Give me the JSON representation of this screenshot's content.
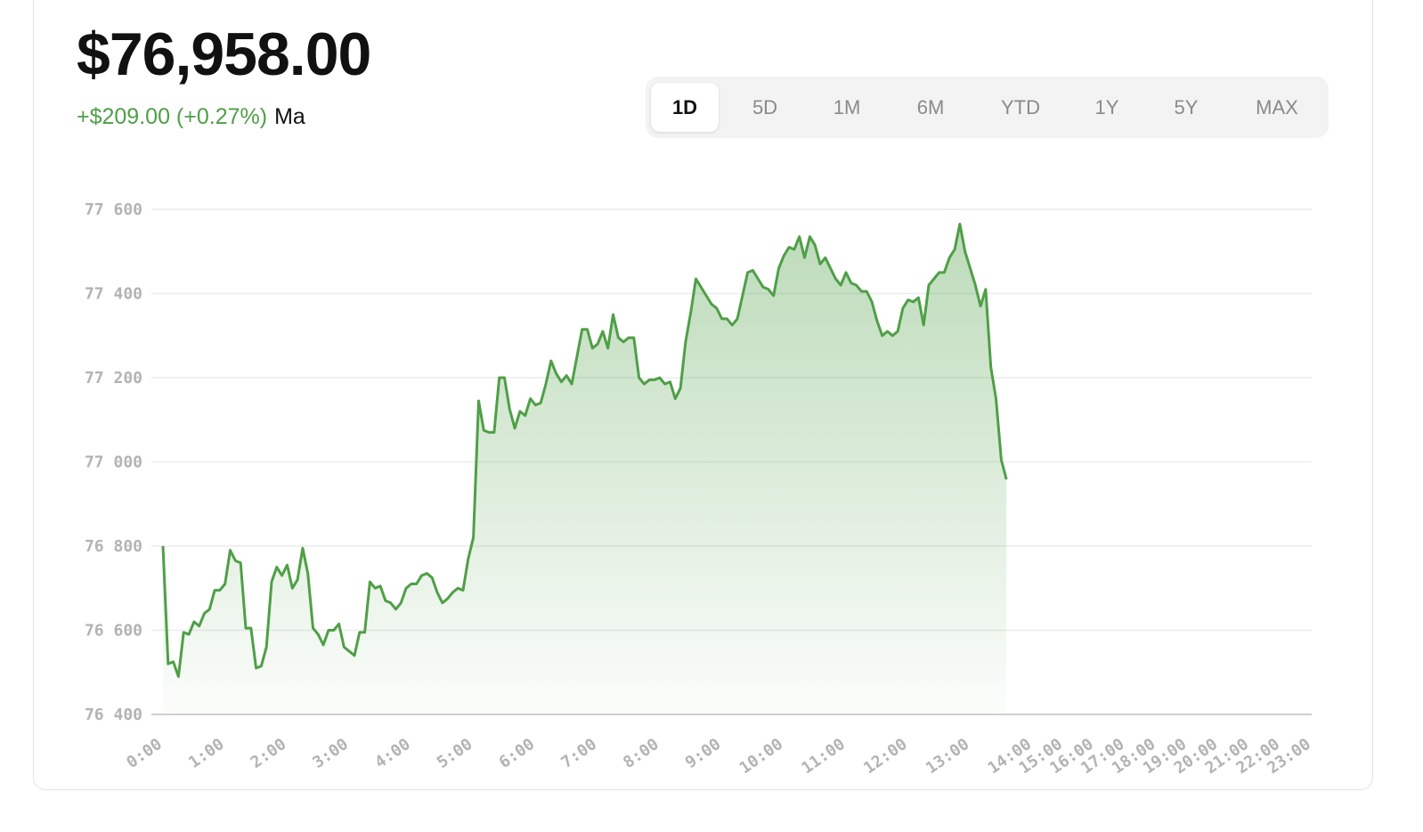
{
  "header": {
    "price": "$76,958.00",
    "change": "+$209.00 (+0.27%)",
    "suffix": "Ma"
  },
  "range_tabs": {
    "items": [
      "1D",
      "5D",
      "1M",
      "6M",
      "YTD",
      "1Y",
      "5Y",
      "MAX"
    ],
    "active": 0
  },
  "chart_data": {
    "type": "line",
    "grid": true,
    "x": [
      0,
      5,
      10,
      15,
      20,
      25,
      30,
      35,
      40,
      45,
      50,
      55,
      60,
      65,
      70,
      75,
      80,
      85,
      90,
      95,
      100,
      105,
      110,
      115,
      120,
      125,
      130,
      135,
      140,
      145,
      150,
      155,
      160,
      165,
      170,
      175,
      180,
      185,
      190,
      195,
      200,
      205,
      210,
      215,
      220,
      225,
      230,
      235,
      240,
      245,
      250,
      255,
      260,
      265,
      270,
      275,
      280,
      285,
      290,
      295,
      300,
      305,
      310,
      315,
      320,
      325,
      330,
      335,
      340,
      345,
      350,
      355,
      360,
      365,
      370,
      375,
      380,
      385,
      390,
      395,
      400,
      405,
      410,
      415,
      420,
      425,
      430,
      435,
      440,
      445,
      450,
      455,
      460,
      465,
      470,
      475,
      480,
      485,
      490,
      495,
      500,
      505,
      510,
      515,
      520,
      525,
      530,
      535,
      540,
      545,
      550,
      555,
      560,
      565,
      570,
      575,
      580,
      585,
      590,
      595,
      600,
      605,
      610,
      615,
      620,
      625,
      630,
      635,
      640,
      645,
      650,
      655,
      660,
      665,
      670,
      675,
      680,
      685,
      690,
      695,
      700,
      705,
      710,
      715,
      720,
      725,
      730,
      735,
      740,
      745,
      750,
      755,
      760,
      765,
      770,
      775,
      780,
      785,
      790,
      795,
      800,
      805,
      810,
      815
    ],
    "series": [
      {
        "color": "#4f9f47",
        "values": [
          76800,
          76520,
          76525,
          76490,
          76595,
          76590,
          76620,
          76610,
          76640,
          76650,
          76695,
          76695,
          76710,
          76790,
          76765,
          76760,
          76605,
          76605,
          76510,
          76515,
          76560,
          76715,
          76750,
          76730,
          76755,
          76700,
          76720,
          76795,
          76735,
          76605,
          76590,
          76565,
          76600,
          76600,
          76615,
          76560,
          76550,
          76540,
          76595,
          76595,
          76715,
          76700,
          76705,
          76670,
          76665,
          76650,
          76665,
          76700,
          76710,
          76710,
          76730,
          76735,
          76725,
          76690,
          76665,
          76675,
          76690,
          76700,
          76695,
          76770,
          76820,
          77145,
          77075,
          77070,
          77070,
          77200,
          77200,
          77125,
          77080,
          77120,
          77110,
          77150,
          77135,
          77140,
          77185,
          77240,
          77210,
          77190,
          77205,
          77185,
          77250,
          77315,
          77315,
          77270,
          77280,
          77310,
          77270,
          77350,
          77295,
          77285,
          77295,
          77295,
          77200,
          77185,
          77195,
          77195,
          77200,
          77185,
          77190,
          77150,
          77175,
          77285,
          77355,
          77435,
          77415,
          77395,
          77375,
          77365,
          77340,
          77340,
          77325,
          77340,
          77395,
          77450,
          77455,
          77435,
          77415,
          77410,
          77395,
          77460,
          77490,
          77510,
          77505,
          77535,
          77485,
          77535,
          77515,
          77470,
          77485,
          77460,
          77435,
          77420,
          77450,
          77425,
          77420,
          77405,
          77405,
          77380,
          77335,
          77300,
          77310,
          77300,
          77310,
          77365,
          77385,
          77380,
          77390,
          77325,
          77420,
          77435,
          77450,
          77450,
          77485,
          77505,
          77565,
          77500,
          77460,
          77420,
          77370,
          77410,
          77225,
          77150,
          77005,
          76958
        ]
      }
    ],
    "xlim": [
      0,
      1380
    ],
    "xticks": [
      {
        "value": 0,
        "label": "0:00"
      },
      {
        "value": 60,
        "label": "1:00"
      },
      {
        "value": 120,
        "label": "2:00"
      },
      {
        "value": 180,
        "label": "3:00"
      },
      {
        "value": 240,
        "label": "4:00"
      },
      {
        "value": 300,
        "label": "5:00"
      },
      {
        "value": 360,
        "label": "6:00"
      },
      {
        "value": 420,
        "label": "7:00"
      },
      {
        "value": 480,
        "label": "8:00"
      },
      {
        "value": 540,
        "label": "9:00"
      },
      {
        "value": 600,
        "label": "10:00"
      },
      {
        "value": 660,
        "label": "11:00"
      },
      {
        "value": 720,
        "label": "12:00"
      },
      {
        "value": 780,
        "label": "13:00"
      },
      {
        "value": 840,
        "label": "14:00"
      },
      {
        "value": 900,
        "label": "15:00"
      },
      {
        "value": 960,
        "label": "16:00"
      },
      {
        "value": 1020,
        "label": "17:00"
      },
      {
        "value": 1080,
        "label": "18:00"
      },
      {
        "value": 1140,
        "label": "19:00"
      },
      {
        "value": 1200,
        "label": "20:00"
      },
      {
        "value": 1260,
        "label": "21:00"
      },
      {
        "value": 1320,
        "label": "22:00"
      },
      {
        "value": 1380,
        "label": "23:00"
      }
    ],
    "ylim": [
      76400,
      77600
    ],
    "yticks": [
      {
        "value": 76400,
        "label": "76 400"
      },
      {
        "value": 76600,
        "label": "76 600"
      },
      {
        "value": 76800,
        "label": "76 800"
      },
      {
        "value": 77000,
        "label": "77 000"
      },
      {
        "value": 77200,
        "label": "77 200"
      },
      {
        "value": 77400,
        "label": "77 400"
      },
      {
        "value": 77600,
        "label": "77 600"
      }
    ]
  }
}
